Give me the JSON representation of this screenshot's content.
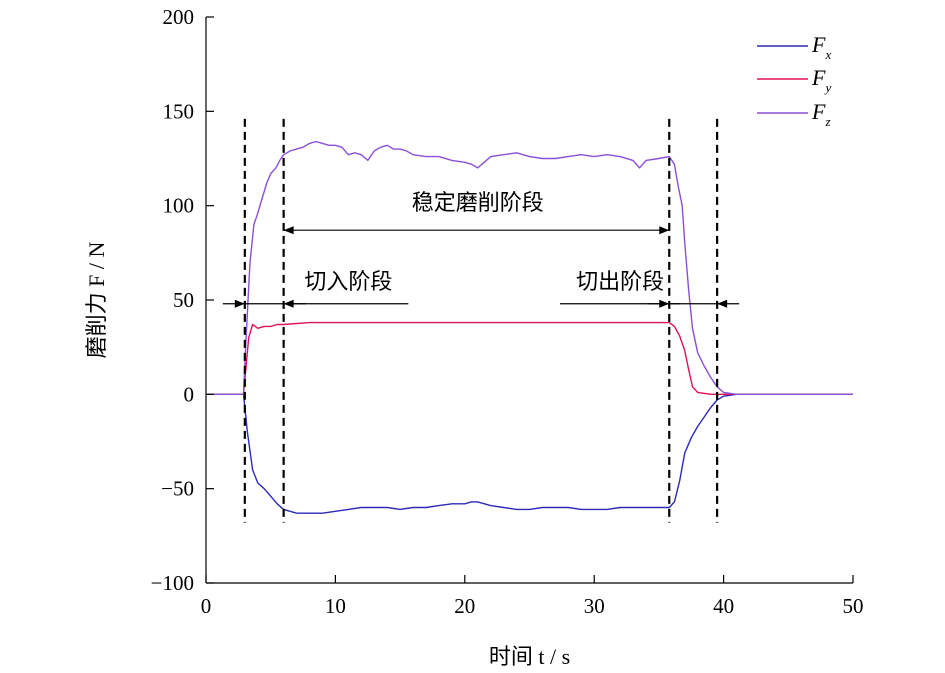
{
  "chart_data": {
    "type": "line",
    "xlabel": "时间 t / s",
    "ylabel": "磨削力 F / N",
    "xlim": [
      0,
      50
    ],
    "ylim": [
      -100,
      200
    ],
    "x_ticks": [
      0,
      10,
      20,
      30,
      40,
      50
    ],
    "y_ticks": [
      -100,
      -50,
      0,
      50,
      100,
      150,
      200
    ],
    "x_tick_labels": [
      "0",
      "10",
      "20",
      "30",
      "40",
      "50"
    ],
    "y_tick_labels": [
      "−100",
      "−50",
      "0",
      "50",
      "100",
      "150",
      "200"
    ],
    "grid": false,
    "legend_position": "top-right",
    "series": [
      {
        "name": "Fx",
        "legend_main": "F",
        "legend_sub": "x",
        "color": "#2b2bb8",
        "x": [
          0,
          2.9,
          3.2,
          3.6,
          4.0,
          4.5,
          5.0,
          5.5,
          6.0,
          7.0,
          8.0,
          9.0,
          10.0,
          11.0,
          12.0,
          13.0,
          14.0,
          15.0,
          16.0,
          17.0,
          18.0,
          19.0,
          20.0,
          20.5,
          21.0,
          22.0,
          23.0,
          24.0,
          25.0,
          26.0,
          27.0,
          28.0,
          29.0,
          30.0,
          31.0,
          32.0,
          33.0,
          34.0,
          35.0,
          35.8,
          36.2,
          36.6,
          37.0,
          37.5,
          38.0,
          38.5,
          39.0,
          39.5,
          40.0,
          41.0,
          50.0
        ],
        "y": [
          0,
          0,
          -20,
          -40,
          -47,
          -50,
          -54,
          -58,
          -61,
          -63,
          -63,
          -63,
          -62,
          -61,
          -60,
          -60,
          -60,
          -61,
          -60,
          -60,
          -59,
          -58,
          -58,
          -57,
          -57,
          -59,
          -60,
          -61,
          -61,
          -60,
          -60,
          -60,
          -61,
          -61,
          -61,
          -60,
          -60,
          -60,
          -60,
          -60,
          -57,
          -46,
          -31,
          -23,
          -17,
          -12,
          -7,
          -3,
          -1,
          0,
          0
        ]
      },
      {
        "name": "Fy",
        "legend_main": "F",
        "legend_sub": "y",
        "color": "#e0105a",
        "x": [
          0,
          2.9,
          3.1,
          3.3,
          3.6,
          4.0,
          4.5,
          5.0,
          5.5,
          6.0,
          8.0,
          10.0,
          14.0,
          18.0,
          22.0,
          26.0,
          30.0,
          34.0,
          35.8,
          36.2,
          36.6,
          37.0,
          37.3,
          37.6,
          38.0,
          39.0,
          40.0,
          50.0
        ],
        "y": [
          0,
          0,
          15,
          30,
          37,
          35,
          36,
          36,
          37,
          37,
          38,
          38,
          38,
          38,
          38,
          38,
          38,
          38,
          38,
          36,
          31,
          23,
          13,
          4,
          1,
          0,
          0,
          0
        ]
      },
      {
        "name": "Fz",
        "legend_main": "F",
        "legend_sub": "z",
        "color": "#8a4fd8",
        "x": [
          0,
          2.9,
          3.1,
          3.4,
          3.7,
          4.0,
          4.3,
          4.7,
          5.0,
          5.4,
          5.7,
          6.0,
          6.5,
          7.0,
          7.5,
          8.0,
          8.5,
          9.0,
          9.5,
          10.0,
          10.5,
          11.0,
          11.5,
          12.0,
          12.5,
          13.0,
          13.5,
          14.0,
          14.5,
          15.0,
          15.5,
          16.0,
          17.0,
          18.0,
          19.0,
          20.0,
          20.5,
          21.0,
          21.5,
          22.0,
          23.0,
          24.0,
          25.0,
          26.0,
          27.0,
          28.0,
          29.0,
          30.0,
          31.0,
          32.0,
          33.0,
          33.5,
          34.0,
          35.0,
          35.8,
          36.2,
          36.5,
          36.8,
          37.0,
          37.3,
          37.6,
          38.0,
          38.5,
          39.0,
          39.5,
          40.0,
          41.0,
          50.0
        ],
        "y": [
          0,
          0,
          30,
          70,
          90,
          96,
          103,
          112,
          117,
          120,
          124,
          127,
          129,
          130,
          131,
          133,
          134,
          133,
          132,
          132,
          131,
          127,
          128,
          127,
          124,
          129,
          131,
          132,
          130,
          130,
          129,
          127,
          126,
          126,
          124,
          123,
          122,
          120,
          123,
          126,
          127,
          128,
          126,
          125,
          125,
          126,
          127,
          126,
          127,
          126,
          124,
          120,
          124,
          125,
          126,
          122,
          110,
          100,
          80,
          55,
          35,
          22,
          15,
          9,
          4,
          1,
          0,
          0
        ]
      }
    ],
    "dashed_lines_x": [
      3,
      6,
      35.8,
      39.5
    ],
    "annotations": [
      {
        "text": "稳定磨削阶段",
        "x": 21,
        "y": 102,
        "arrow_from": 6,
        "arrow_to": 35.8,
        "arrow_y": 87
      },
      {
        "text": "切入阶段",
        "x": 11,
        "y": 60,
        "arrow_from": 3,
        "arrow_to": 6,
        "arrow_y": 48
      },
      {
        "text": "切出阶段",
        "x": 32,
        "y": 60,
        "arrow_from": 35.8,
        "arrow_to": 39.5,
        "arrow_y": 48
      }
    ]
  }
}
